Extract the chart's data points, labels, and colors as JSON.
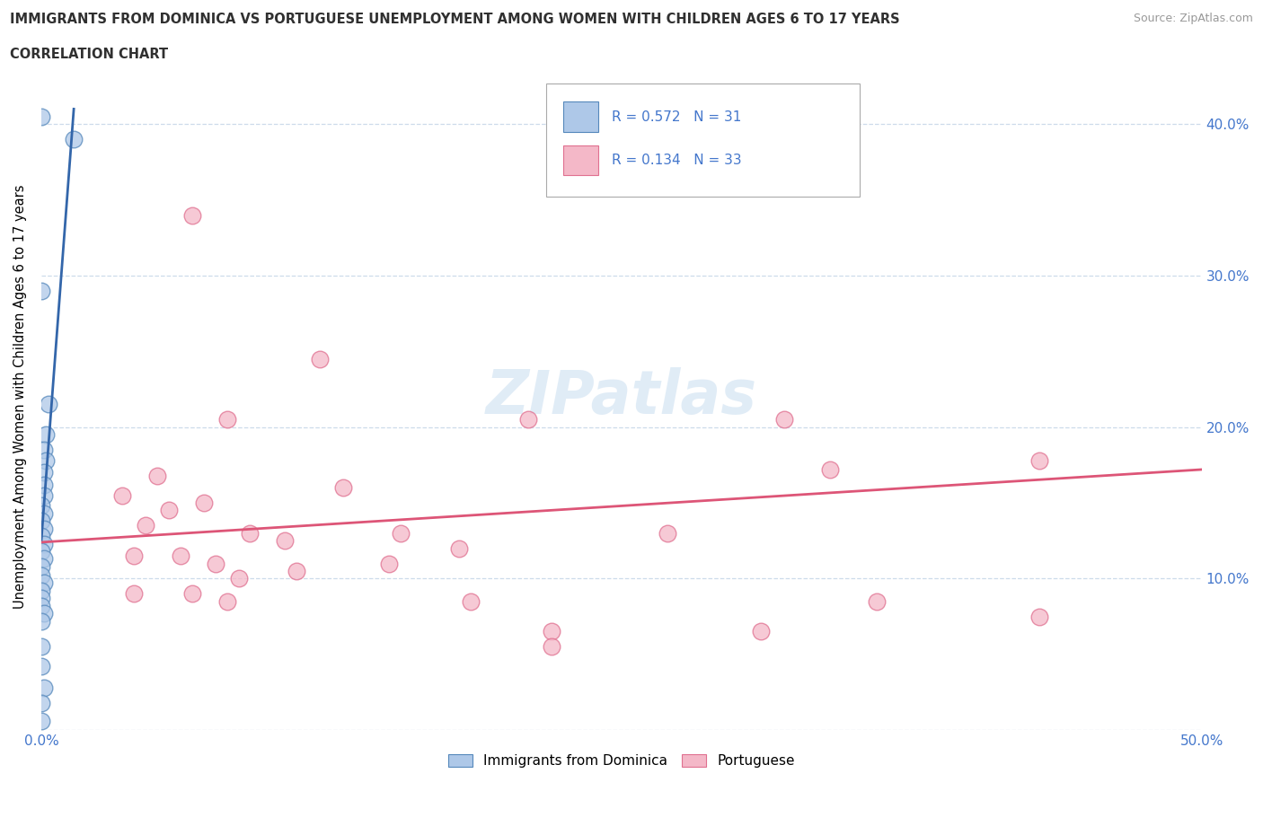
{
  "title_line1": "IMMIGRANTS FROM DOMINICA VS PORTUGUESE UNEMPLOYMENT AMONG WOMEN WITH CHILDREN AGES 6 TO 17 YEARS",
  "title_line2": "CORRELATION CHART",
  "source_text": "Source: ZipAtlas.com",
  "ylabel": "Unemployment Among Women with Children Ages 6 to 17 years",
  "xlim": [
    0.0,
    0.5
  ],
  "ylim": [
    0.0,
    0.44
  ],
  "xtick_vals": [
    0.0,
    0.1,
    0.2,
    0.3,
    0.4,
    0.5
  ],
  "ytick_vals": [
    0.0,
    0.1,
    0.2,
    0.3,
    0.4
  ],
  "ytick_labels": [
    "",
    "10.0%",
    "20.0%",
    "30.0%",
    "40.0%"
  ],
  "blue_R": 0.572,
  "blue_N": 31,
  "pink_R": 0.134,
  "pink_N": 33,
  "blue_color": "#aec8e8",
  "pink_color": "#f4b8c8",
  "blue_edge_color": "#5588bb",
  "pink_edge_color": "#e07090",
  "blue_line_color": "#3366aa",
  "pink_line_color": "#dd5577",
  "watermark": "ZIPatlas",
  "blue_line_x0": 0.0,
  "blue_line_y0": 0.125,
  "blue_line_x1": 0.014,
  "blue_line_y1": 0.41,
  "pink_line_x0": 0.0,
  "pink_line_y0": 0.124,
  "pink_line_x1": 0.5,
  "pink_line_y1": 0.172,
  "blue_scatter": [
    [
      0.0,
      0.405
    ],
    [
      0.014,
      0.39
    ],
    [
      0.0,
      0.29
    ],
    [
      0.003,
      0.215
    ],
    [
      0.002,
      0.195
    ],
    [
      0.001,
      0.185
    ],
    [
      0.002,
      0.178
    ],
    [
      0.001,
      0.17
    ],
    [
      0.001,
      0.162
    ],
    [
      0.001,
      0.155
    ],
    [
      0.0,
      0.148
    ],
    [
      0.001,
      0.143
    ],
    [
      0.0,
      0.138
    ],
    [
      0.001,
      0.133
    ],
    [
      0.0,
      0.128
    ],
    [
      0.001,
      0.123
    ],
    [
      0.0,
      0.118
    ],
    [
      0.001,
      0.113
    ],
    [
      0.0,
      0.108
    ],
    [
      0.0,
      0.102
    ],
    [
      0.001,
      0.097
    ],
    [
      0.0,
      0.092
    ],
    [
      0.0,
      0.087
    ],
    [
      0.0,
      0.082
    ],
    [
      0.001,
      0.077
    ],
    [
      0.0,
      0.072
    ],
    [
      0.0,
      0.055
    ],
    [
      0.0,
      0.042
    ],
    [
      0.001,
      0.028
    ],
    [
      0.0,
      0.018
    ],
    [
      0.0,
      0.006
    ]
  ],
  "pink_scatter": [
    [
      0.065,
      0.34
    ],
    [
      0.12,
      0.245
    ],
    [
      0.08,
      0.205
    ],
    [
      0.21,
      0.205
    ],
    [
      0.32,
      0.205
    ],
    [
      0.43,
      0.178
    ],
    [
      0.34,
      0.172
    ],
    [
      0.05,
      0.168
    ],
    [
      0.13,
      0.16
    ],
    [
      0.035,
      0.155
    ],
    [
      0.07,
      0.15
    ],
    [
      0.055,
      0.145
    ],
    [
      0.045,
      0.135
    ],
    [
      0.09,
      0.13
    ],
    [
      0.155,
      0.13
    ],
    [
      0.27,
      0.13
    ],
    [
      0.105,
      0.125
    ],
    [
      0.18,
      0.12
    ],
    [
      0.04,
      0.115
    ],
    [
      0.06,
      0.115
    ],
    [
      0.075,
      0.11
    ],
    [
      0.15,
      0.11
    ],
    [
      0.11,
      0.105
    ],
    [
      0.085,
      0.1
    ],
    [
      0.04,
      0.09
    ],
    [
      0.065,
      0.09
    ],
    [
      0.08,
      0.085
    ],
    [
      0.185,
      0.085
    ],
    [
      0.36,
      0.085
    ],
    [
      0.43,
      0.075
    ],
    [
      0.22,
      0.065
    ],
    [
      0.31,
      0.065
    ],
    [
      0.22,
      0.055
    ]
  ]
}
